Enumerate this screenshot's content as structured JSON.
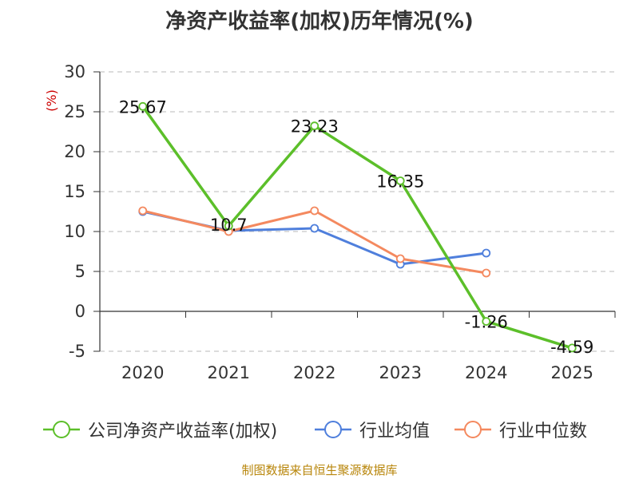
{
  "title": "净资产收益率(加权)历年情况(%)",
  "source": "制图数据来自恒生聚源数据库",
  "chart_data": {
    "type": "line",
    "title": "净资产收益率(加权)历年情况(%)",
    "ylabel": "(%)",
    "xlabel": "",
    "categories": [
      "2020",
      "2021",
      "2022",
      "2023",
      "2024",
      "2025"
    ],
    "ylim": [
      -5,
      30
    ],
    "yticks": [
      -5,
      0,
      5,
      10,
      15,
      20,
      25,
      30
    ],
    "grid": "horizontal-dashed",
    "legend_position": "bottom",
    "series": [
      {
        "name": "公司净资产收益率(加权)",
        "color": "#5cbf2a",
        "values": [
          25.67,
          10.7,
          23.23,
          16.35,
          -1.26,
          -4.59
        ],
        "labels": [
          "25.67",
          "10.7",
          "23.23",
          "16.35",
          "-1.26",
          "-4.59"
        ]
      },
      {
        "name": "行业均值",
        "color": "#4f7fdc",
        "values": [
          12.5,
          10.1,
          10.4,
          5.9,
          7.3,
          null
        ]
      },
      {
        "name": "行业中位数",
        "color": "#f4895f",
        "values": [
          12.6,
          10.0,
          12.6,
          6.6,
          4.8,
          null
        ]
      }
    ]
  }
}
